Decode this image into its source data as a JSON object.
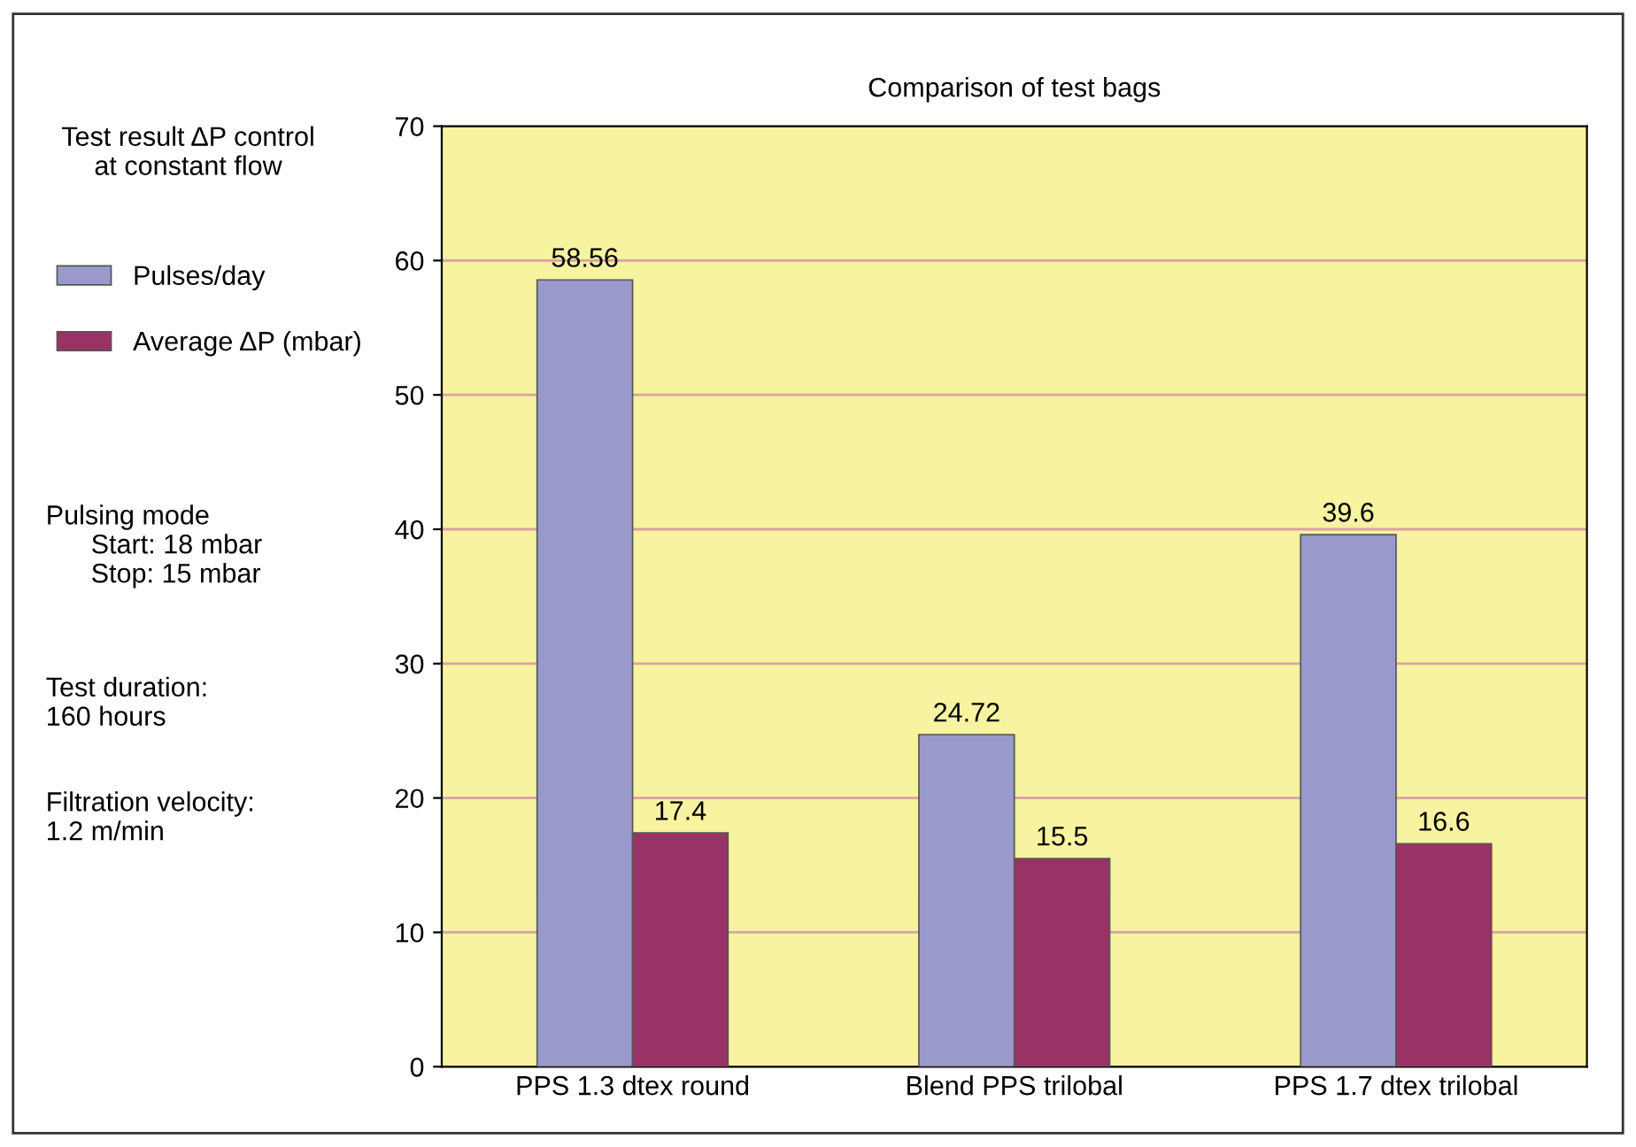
{
  "chart_data": {
    "type": "bar",
    "title": "Comparison of test bags",
    "categories": [
      "PPS 1.3 dtex round",
      "Blend PPS trilobal",
      "PPS 1.7 dtex trilobal"
    ],
    "series": [
      {
        "name": "Pulses/day",
        "color": "#9999cc",
        "values": [
          58.56,
          24.72,
          39.6
        ]
      },
      {
        "name": "Average ΔP (mbar)",
        "color": "#993366",
        "values": [
          17.4,
          15.5,
          16.6
        ]
      }
    ],
    "ylim": [
      0,
      70
    ],
    "yticks": [
      0,
      10,
      20,
      30,
      40,
      50,
      60,
      70
    ],
    "data_labels": true,
    "grid": "y",
    "legend": "left",
    "annotations": [
      "Test result ΔP control\nat constant flow",
      "Pulsing mode\n      Start: 18 mbar\n      Stop: 15 mbar",
      "Test duration:\n160 hours",
      "Filtration velocity:\n1.2 m/min"
    ]
  }
}
